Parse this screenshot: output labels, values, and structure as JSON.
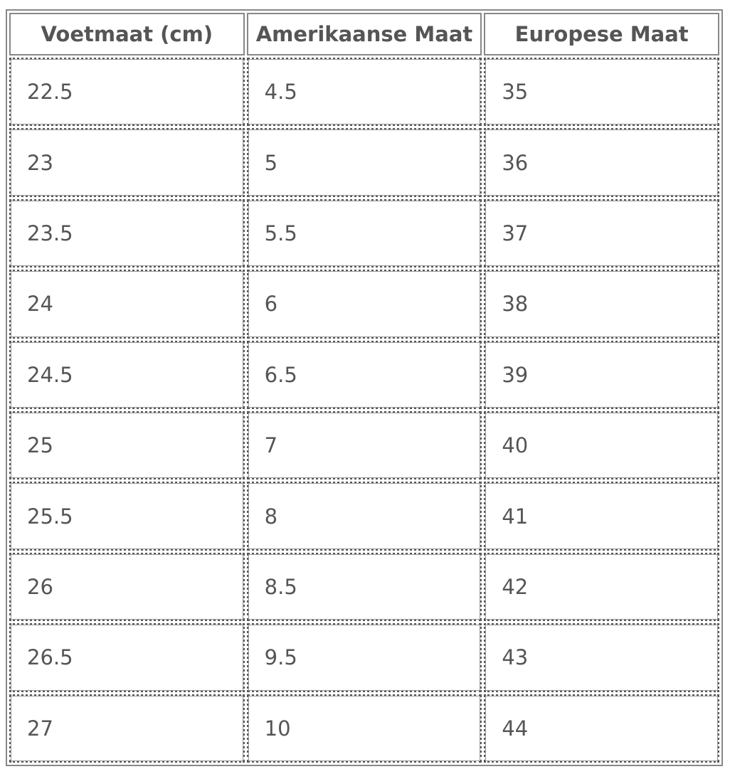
{
  "table": {
    "headers": [
      "Voetmaat (cm)",
      "Amerikaanse Maat",
      "Europese Maat"
    ],
    "rows": [
      [
        "22.5",
        "4.5",
        "35"
      ],
      [
        "23",
        "5",
        "36"
      ],
      [
        "23.5",
        "5.5",
        "37"
      ],
      [
        "24",
        "6",
        "38"
      ],
      [
        "24.5",
        "6.5",
        "39"
      ],
      [
        "25",
        "7",
        "40"
      ],
      [
        "25.5",
        "8",
        "41"
      ],
      [
        "26",
        "8.5",
        "42"
      ],
      [
        "26.5",
        "9.5",
        "43"
      ],
      [
        "27",
        "10",
        "44"
      ]
    ]
  }
}
